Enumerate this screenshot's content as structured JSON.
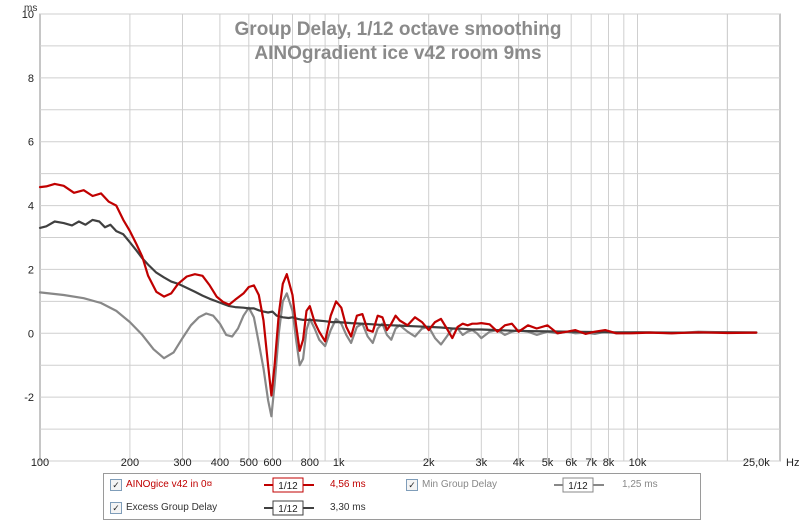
{
  "chart_data": {
    "type": "line",
    "title": "Group Delay, 1/12 octave smoothing",
    "subtitle": "AINOgradient ice v42 room 9ms",
    "ylabel": "ms",
    "xlabel_unit": "Hz",
    "x_scale": "log",
    "xlim": [
      100,
      30000
    ],
    "ylim": [
      -4,
      10
    ],
    "grid": true,
    "x_ticks": [
      {
        "v": 100,
        "label": "100"
      },
      {
        "v": 200,
        "label": "200"
      },
      {
        "v": 300,
        "label": "300"
      },
      {
        "v": 400,
        "label": "400"
      },
      {
        "v": 500,
        "label": "500"
      },
      {
        "v": 600,
        "label": "600"
      },
      {
        "v": 800,
        "label": "800"
      },
      {
        "v": 1000,
        "label": "1k"
      },
      {
        "v": 2000,
        "label": "2k"
      },
      {
        "v": 3000,
        "label": "3k"
      },
      {
        "v": 4000,
        "label": "4k"
      },
      {
        "v": 5000,
        "label": "5k"
      },
      {
        "v": 6000,
        "label": "6k"
      },
      {
        "v": 7000,
        "label": "7k"
      },
      {
        "v": 8000,
        "label": "8k"
      },
      {
        "v": 10000,
        "label": "10k"
      },
      {
        "v": 25000,
        "label": "25,0k"
      }
    ],
    "y_ticks": [
      {
        "v": 10,
        "label": "10"
      },
      {
        "v": 8,
        "label": "8"
      },
      {
        "v": 6,
        "label": "6"
      },
      {
        "v": 4,
        "label": "4"
      },
      {
        "v": 2,
        "label": "2"
      },
      {
        "v": 0,
        "label": "0"
      },
      {
        "v": -2,
        "label": "-2"
      }
    ],
    "series": [
      {
        "name": "AINOgice v42 in 0¤",
        "color": "#c00000",
        "x": [
          100,
          105,
          112,
          120,
          130,
          140,
          150,
          160,
          170,
          180,
          190,
          200,
          210,
          220,
          230,
          245,
          260,
          275,
          290,
          310,
          330,
          350,
          370,
          390,
          410,
          430,
          450,
          480,
          500,
          520,
          540,
          560,
          580,
          595,
          610,
          630,
          650,
          670,
          700,
          720,
          740,
          760,
          780,
          800,
          830,
          860,
          900,
          940,
          980,
          1020,
          1060,
          1100,
          1150,
          1200,
          1250,
          1300,
          1350,
          1400,
          1450,
          1500,
          1550,
          1600,
          1700,
          1800,
          1900,
          2000,
          2100,
          2200,
          2300,
          2400,
          2500,
          2600,
          2700,
          2800,
          2900,
          3000,
          3200,
          3400,
          3600,
          3800,
          4000,
          4300,
          4600,
          5000,
          5400,
          5800,
          6200,
          6700,
          7200,
          7800,
          8500,
          9500,
          11000,
          13000,
          16000,
          20000,
          25000
        ],
        "y": [
          4.58,
          4.6,
          4.68,
          4.62,
          4.4,
          4.48,
          4.3,
          4.38,
          4.12,
          4.0,
          3.55,
          3.2,
          2.8,
          2.4,
          1.8,
          1.3,
          1.15,
          1.25,
          1.55,
          1.78,
          1.85,
          1.8,
          1.5,
          1.15,
          0.98,
          0.9,
          1.05,
          1.25,
          1.45,
          1.5,
          1.2,
          0.4,
          -1.0,
          -1.95,
          -1.0,
          0.6,
          1.55,
          1.85,
          1.2,
          0.25,
          -0.55,
          -0.2,
          0.7,
          0.85,
          0.35,
          0.05,
          -0.25,
          0.55,
          1.0,
          0.8,
          0.2,
          -0.1,
          0.55,
          0.6,
          0.1,
          0.05,
          0.55,
          0.5,
          0.1,
          0.3,
          0.55,
          0.4,
          0.25,
          0.5,
          0.35,
          0.1,
          0.35,
          0.45,
          0.15,
          -0.15,
          0.2,
          0.3,
          0.25,
          0.3,
          0.3,
          0.32,
          0.28,
          0.05,
          0.25,
          0.3,
          0.05,
          0.25,
          0.15,
          0.25,
          0.0,
          0.05,
          0.1,
          -0.02,
          0.05,
          0.1,
          0.0,
          0.0,
          0.02,
          0.0,
          0.03,
          0.01,
          0.02
        ]
      },
      {
        "name": "Min Group Delay",
        "color": "#888888",
        "x": [
          100,
          120,
          140,
          160,
          180,
          200,
          220,
          240,
          260,
          280,
          300,
          320,
          340,
          360,
          380,
          400,
          420,
          440,
          460,
          480,
          500,
          520,
          540,
          560,
          580,
          595,
          610,
          630,
          650,
          670,
          700,
          720,
          740,
          760,
          780,
          800,
          830,
          860,
          900,
          940,
          980,
          1020,
          1060,
          1100,
          1150,
          1200,
          1250,
          1300,
          1350,
          1400,
          1450,
          1500,
          1550,
          1600,
          1700,
          1800,
          1900,
          2000,
          2100,
          2200,
          2300,
          2400,
          2500,
          2600,
          2700,
          2800,
          2900,
          3000,
          3200,
          3400,
          3600,
          3800,
          4000,
          4300,
          4600,
          5000,
          5400,
          5800,
          6200,
          6700,
          7200,
          7800,
          8500,
          9500,
          11000,
          13000,
          16000,
          20000,
          25000
        ],
        "y": [
          1.28,
          1.2,
          1.1,
          0.95,
          0.7,
          0.35,
          -0.05,
          -0.5,
          -0.78,
          -0.6,
          -0.15,
          0.25,
          0.5,
          0.62,
          0.55,
          0.3,
          -0.05,
          -0.1,
          0.15,
          0.55,
          0.8,
          0.5,
          -0.3,
          -1.1,
          -2.1,
          -2.6,
          -1.6,
          0.0,
          1.0,
          1.25,
          0.7,
          -0.2,
          -1.0,
          -0.8,
          0.1,
          0.45,
          0.15,
          -0.2,
          -0.4,
          0.1,
          0.45,
          0.3,
          -0.05,
          -0.3,
          0.2,
          0.3,
          -0.1,
          -0.3,
          0.15,
          0.3,
          -0.05,
          -0.2,
          0.15,
          0.25,
          0.05,
          -0.1,
          0.15,
          0.2,
          -0.15,
          -0.35,
          -0.1,
          0.15,
          0.15,
          -0.05,
          0.05,
          0.1,
          0.0,
          -0.15,
          0.05,
          0.1,
          -0.05,
          0.05,
          0.1,
          0.05,
          -0.05,
          0.05,
          0.0,
          0.05,
          0.0,
          0.02,
          -0.02,
          0.05,
          0.0,
          0.02,
          0.03,
          0.0,
          0.05,
          0.03,
          0.03
        ]
      },
      {
        "name": "Excess Group Delay",
        "color": "#404040",
        "x": [
          100,
          105,
          112,
          120,
          128,
          135,
          142,
          150,
          158,
          165,
          172,
          180,
          190,
          200,
          210,
          220,
          230,
          245,
          260,
          275,
          290,
          310,
          330,
          350,
          370,
          390,
          410,
          430,
          450,
          480,
          500,
          520,
          540,
          560,
          580,
          600,
          620,
          650,
          680,
          700,
          730,
          760,
          800,
          850,
          900,
          950,
          1000,
          1100,
          1200,
          1300,
          1400,
          1500,
          1600,
          1800,
          2000,
          2200,
          2400,
          2600,
          2800,
          3000,
          3400,
          3800,
          4300,
          5000,
          6000,
          7000,
          8000,
          10000,
          13000,
          16000,
          20000,
          25000
        ],
        "y": [
          3.3,
          3.35,
          3.5,
          3.45,
          3.38,
          3.5,
          3.4,
          3.55,
          3.5,
          3.32,
          3.4,
          3.2,
          3.1,
          2.85,
          2.6,
          2.35,
          2.15,
          1.9,
          1.75,
          1.62,
          1.55,
          1.42,
          1.3,
          1.18,
          1.08,
          1.0,
          0.92,
          0.85,
          0.82,
          0.8,
          0.78,
          0.78,
          0.72,
          0.68,
          0.65,
          0.68,
          0.55,
          0.5,
          0.48,
          0.5,
          0.45,
          0.42,
          0.42,
          0.4,
          0.38,
          0.35,
          0.35,
          0.32,
          0.3,
          0.28,
          0.26,
          0.25,
          0.24,
          0.22,
          0.2,
          0.18,
          0.15,
          0.14,
          0.12,
          0.12,
          0.1,
          0.08,
          0.07,
          0.06,
          0.05,
          0.04,
          0.03,
          0.03,
          0.02,
          0.02,
          0.03,
          0.02
        ]
      }
    ]
  },
  "legend": {
    "items": [
      {
        "label": "AINOgice v42 in 0¤",
        "smoothing": "1/12",
        "value": "4,56 ms",
        "checked": "✓"
      },
      {
        "label": "Min Group Delay",
        "smoothing": "1/12",
        "value": "1,25 ms",
        "checked": "✓"
      },
      {
        "label": "Excess Group Delay",
        "smoothing": "1/12",
        "value": "3,30 ms",
        "checked": "✓"
      }
    ]
  }
}
